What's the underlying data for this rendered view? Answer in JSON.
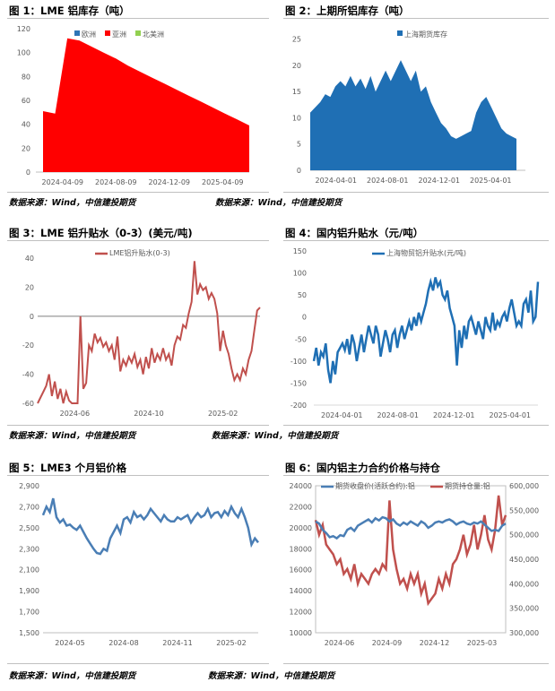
{
  "panels": [
    {
      "title": "图 1：LME 铝库存（吨）",
      "source": "数据来源：Wind，中信建投期货"
    },
    {
      "title": "图 2：上期所铝库存（吨）",
      "source": "数据来源：Wind，中信建投期货"
    },
    {
      "title": "图 3：LME 铝升贴水（0-3）(美元/吨)",
      "source": "数据来源：Wind，中信建投期货"
    },
    {
      "title": "图 4：国内铝升贴水（元/吨）",
      "source": "数据来源：Wind，中信建投期货"
    },
    {
      "title": "图 5：LME3 个月铝价格",
      "source": "数据来源：Wind，中信建投期货"
    },
    {
      "title": "图 6：国内铝主力合约价格与持仓",
      "source": "数据来源：Wind，中信建投期货"
    }
  ],
  "chart_data": [
    {
      "type": "area",
      "yticks": [
        0,
        20,
        40,
        60,
        80,
        100,
        120
      ],
      "ylim": [
        0,
        120
      ],
      "xticks": [
        "2024-04-09",
        "2024-08-09",
        "2024-12-09",
        "2025-04-09"
      ],
      "legend": "top-center",
      "series": [
        {
          "name": "欧洲",
          "color": "#2e75b6",
          "values": [
            0,
            0,
            0,
            0,
            0,
            0,
            0,
            0,
            0,
            0,
            0,
            0,
            0,
            0,
            0,
            0,
            0,
            0
          ]
        },
        {
          "name": "亚洲",
          "color": "#ff0000",
          "values": [
            51,
            49,
            112,
            110,
            105,
            100,
            95,
            89,
            84,
            79,
            74,
            69,
            64,
            59,
            54,
            49,
            44,
            39
          ]
        },
        {
          "name": "北美洲",
          "color": "#92d050",
          "values": [
            0,
            0,
            0,
            0,
            0,
            0,
            0,
            0,
            0,
            0,
            0,
            0,
            0,
            0,
            0,
            0,
            0,
            0
          ]
        }
      ],
      "x": [
        "2024-04-09",
        "2024-04-20",
        "2024-05-02",
        "2024-05-20",
        "2024-06-15",
        "2024-07-10",
        "2024-08-05",
        "2024-09-01",
        "2024-09-25",
        "2024-10-20",
        "2024-11-15",
        "2024-12-10",
        "2025-01-05",
        "2025-01-30",
        "2025-02-25",
        "2025-03-20",
        "2025-04-12",
        "2025-05-02"
      ]
    },
    {
      "type": "area",
      "yticks": [
        0,
        5,
        10,
        15,
        20,
        25
      ],
      "ylim": [
        0,
        27
      ],
      "xticks": [
        "2024-04-01",
        "2024-08-01",
        "2024-12-01",
        "2025-04-01"
      ],
      "legend": "top-center",
      "series": [
        {
          "name": "上海期货库存",
          "color": "#1f6fb4",
          "values": [
            11,
            12,
            13,
            14.5,
            14,
            16,
            17,
            16,
            18,
            16,
            17.5,
            15.5,
            18,
            15,
            17,
            19,
            17,
            19,
            21,
            19,
            17,
            19,
            15,
            16,
            13,
            11,
            9,
            8,
            6.5,
            6,
            6.5,
            7,
            7.5,
            11,
            13,
            14,
            12,
            10,
            8,
            7,
            6.5,
            6
          ]
        }
      ],
      "x_start": "2024-04-01",
      "x_end": "2025-05-01"
    },
    {
      "type": "line",
      "yticks": [
        -60,
        -40,
        -20,
        0,
        20,
        40
      ],
      "ylim": [
        -60,
        45
      ],
      "xticks": [
        "2024-06",
        "2024-10",
        "2025-02"
      ],
      "legend": "top-center",
      "zero_line": true,
      "series": [
        {
          "name": "LME铝升贴水(0-3)",
          "color": "#c0504d",
          "values": [
            -60,
            -56,
            -52,
            -48,
            -40,
            -55,
            -45,
            -57,
            -50,
            -60,
            -52,
            -58,
            -60,
            -60,
            -60,
            0,
            -50,
            -46,
            -20,
            -24,
            -12,
            -18,
            -15,
            -21,
            -18,
            -24,
            -20,
            -30,
            -14,
            -38,
            -30,
            -34,
            -28,
            -32,
            -26,
            -35,
            -30,
            -40,
            -28,
            -36,
            -22,
            -32,
            -26,
            -30,
            -22,
            -30,
            -26,
            -34,
            -20,
            -14,
            -16,
            -6,
            -8,
            2,
            10,
            38,
            15,
            22,
            18,
            20,
            12,
            16,
            12,
            2,
            -24,
            -10,
            -20,
            -26,
            -36,
            -44,
            -40,
            -44,
            -36,
            -40,
            -30,
            -24,
            -10,
            4,
            6
          ]
        }
      ],
      "x_start": "2024-06",
      "x_end": "2025-04-20"
    },
    {
      "type": "line",
      "yticks": [
        -200,
        -150,
        -100,
        -50,
        0,
        50,
        100,
        150
      ],
      "ylim": [
        -200,
        150
      ],
      "xticks": [
        "2024-04-01",
        "2024-08-01",
        "2024-12-01",
        "2025-04-01"
      ],
      "legend": "top-center",
      "series": [
        {
          "name": "上海物贸铝升贴水(元/吨)",
          "color": "#1f6fb4",
          "values": [
            -100,
            -70,
            -110,
            -80,
            -90,
            -60,
            -120,
            -150,
            -100,
            -130,
            -80,
            -70,
            -60,
            -75,
            -50,
            -85,
            -40,
            -60,
            -100,
            -70,
            -40,
            -80,
            -50,
            -20,
            -40,
            -60,
            -20,
            -40,
            -90,
            -60,
            -30,
            -50,
            -80,
            -40,
            -30,
            -70,
            -40,
            -20,
            -50,
            -30,
            -10,
            -30,
            0,
            -20,
            10,
            -10,
            10,
            30,
            60,
            80,
            60,
            90,
            70,
            80,
            50,
            40,
            60,
            20,
            0,
            -20,
            -110,
            -30,
            -70,
            -20,
            -50,
            -10,
            0,
            -20,
            -40,
            -10,
            -30,
            -50,
            0,
            -20,
            -30,
            10,
            -30,
            -10,
            -20,
            0,
            10,
            -10,
            20,
            40,
            10,
            -20,
            -10,
            -20,
            30,
            40,
            10,
            60,
            -10,
            0,
            80
          ]
        }
      ],
      "x_start": "2024-04-01",
      "x_end": "2025-04-20"
    },
    {
      "type": "line",
      "yticks": [
        "1,500",
        "1,700",
        "1,900",
        "2,100",
        "2,300",
        "2,500",
        "2,700",
        "2,900"
      ],
      "ylim": [
        1500,
        2900
      ],
      "xticks": [
        "2024-05",
        "2024-08",
        "2024-11",
        "2025-02"
      ],
      "series": [
        {
          "name": "",
          "color": "#4a7eb5",
          "values": [
            2620,
            2700,
            2650,
            2780,
            2600,
            2550,
            2580,
            2520,
            2530,
            2500,
            2480,
            2520,
            2460,
            2400,
            2350,
            2300,
            2260,
            2250,
            2300,
            2280,
            2400,
            2460,
            2520,
            2450,
            2580,
            2600,
            2550,
            2650,
            2600,
            2620,
            2580,
            2620,
            2680,
            2640,
            2600,
            2560,
            2620,
            2580,
            2560,
            2560,
            2600,
            2580,
            2600,
            2620,
            2550,
            2600,
            2640,
            2600,
            2620,
            2680,
            2600,
            2640,
            2650,
            2600,
            2660,
            2620,
            2700,
            2640,
            2600,
            2680,
            2600,
            2500,
            2340,
            2400,
            2360
          ]
        }
      ],
      "x_start": "2024-05",
      "x_end": "2025-04-25"
    },
    {
      "type": "line",
      "yticks_left": [
        10000,
        12000,
        14000,
        16000,
        18000,
        20000,
        22000,
        24000
      ],
      "ylim_left": [
        10000,
        24000
      ],
      "yticks_right": [
        "300,000",
        "350,000",
        "400,000",
        "450,000",
        "500,000",
        "550,000",
        "600,000"
      ],
      "ylim_right": [
        300000,
        600000
      ],
      "xticks": [
        "2024-06",
        "2024-09",
        "2024-12",
        "2025-03"
      ],
      "legend": "top-center",
      "series": [
        {
          "name": "期货收盘价(活跃合约):铝",
          "color": "#4a7eb5",
          "axis": "left",
          "values": [
            20600,
            20400,
            19800,
            19500,
            19100,
            19200,
            19000,
            19300,
            19200,
            19800,
            20000,
            19700,
            20200,
            20400,
            20600,
            20800,
            20500,
            20900,
            20700,
            21000,
            20900,
            20600,
            20800,
            20400,
            20200,
            20500,
            20300,
            20600,
            20400,
            20200,
            20600,
            20400,
            20000,
            20200,
            20500,
            20600,
            20500,
            20700,
            20800,
            20600,
            20300,
            20500,
            20600,
            20400,
            20300,
            20500,
            20400,
            20600,
            20300,
            20000,
            19700,
            19800,
            19700,
            20200,
            20400
          ]
        },
        {
          "name": "期货持仓量:铝",
          "color": "#c0504d",
          "axis": "right",
          "values": [
            530000,
            500000,
            520000,
            480000,
            470000,
            460000,
            440000,
            450000,
            420000,
            430000,
            410000,
            440000,
            400000,
            420000,
            410000,
            400000,
            420000,
            430000,
            420000,
            440000,
            430000,
            570000,
            470000,
            430000,
            400000,
            410000,
            390000,
            420000,
            400000,
            420000,
            380000,
            400000,
            360000,
            370000,
            380000,
            410000,
            390000,
            420000,
            400000,
            440000,
            450000,
            470000,
            500000,
            460000,
            480000,
            520000,
            470000,
            500000,
            540000,
            490000,
            470000,
            510000,
            580000,
            520000,
            540000
          ]
        }
      ],
      "x_start": "2024-06",
      "x_end": "2025-04-20"
    }
  ]
}
